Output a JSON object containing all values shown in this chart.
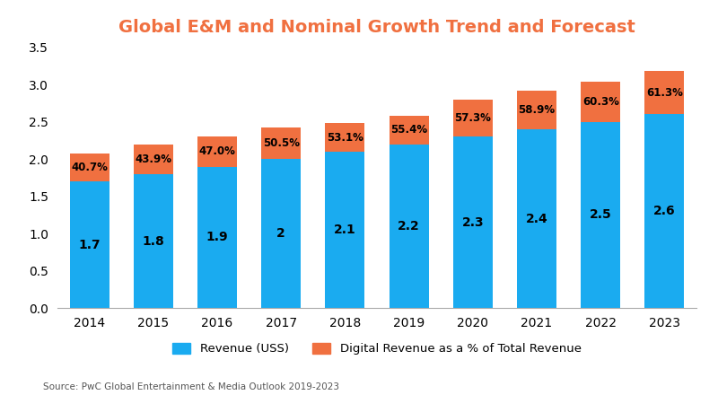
{
  "title": "Global E&M and Nominal Growth Trend and Forecast",
  "years": [
    2014,
    2015,
    2016,
    2017,
    2018,
    2019,
    2020,
    2021,
    2022,
    2023
  ],
  "revenue": [
    1.7,
    1.8,
    1.9,
    2.0,
    2.1,
    2.2,
    2.3,
    2.4,
    2.5,
    2.6
  ],
  "digital_pct": [
    40.7,
    43.9,
    47.0,
    50.5,
    53.1,
    55.4,
    57.3,
    58.9,
    60.3,
    61.3
  ],
  "orange_heights": [
    0.38,
    0.4,
    0.4,
    0.42,
    0.38,
    0.38,
    0.5,
    0.52,
    0.54,
    0.58
  ],
  "bar_color_blue": "#1AABF0",
  "bar_color_orange": "#F07040",
  "title_color": "#F07040",
  "ylim": [
    0,
    3.5
  ],
  "yticks": [
    0,
    0.5,
    1.0,
    1.5,
    2.0,
    2.5,
    3.0,
    3.5
  ],
  "legend_labels": [
    "Revenue (USS)",
    "Digital Revenue as a % of Total Revenue"
  ],
  "source_text": "Source: PwC Global Entertainment & Media Outlook 2019-2023",
  "background_color": "#FFFFFF"
}
